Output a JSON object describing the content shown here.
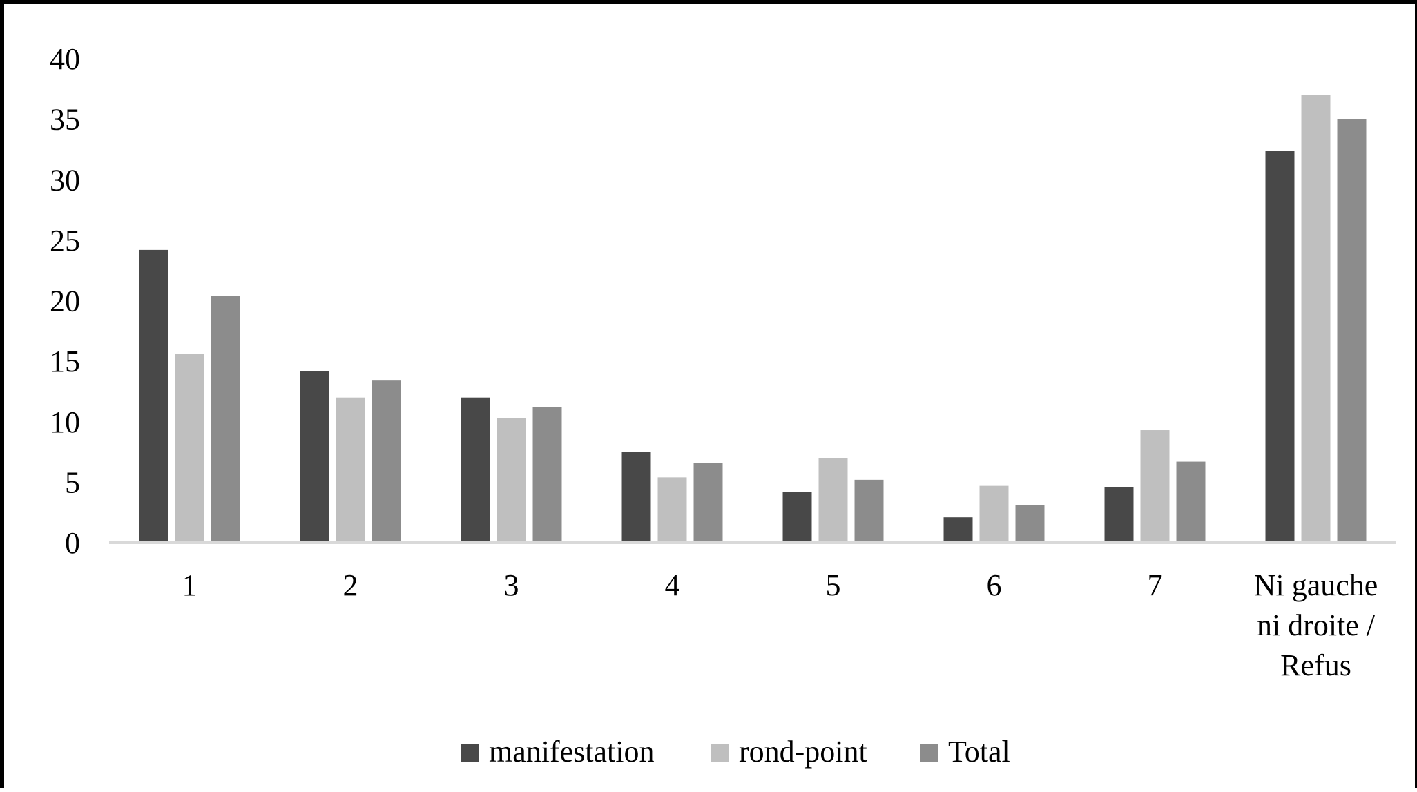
{
  "chart_data": {
    "type": "bar",
    "categories": [
      "1",
      "2",
      "3",
      "4",
      "5",
      "6",
      "7",
      "Ni gauche ni droite / Refus"
    ],
    "category_label_lines": [
      [
        "1"
      ],
      [
        "2"
      ],
      [
        "3"
      ],
      [
        "4"
      ],
      [
        "5"
      ],
      [
        "6"
      ],
      [
        "7"
      ],
      [
        "Ni gauche",
        "ni droite /",
        "Refus"
      ]
    ],
    "series": [
      {
        "name": "manifestation",
        "color": "#484848",
        "values": [
          24.2,
          14.2,
          12.0,
          7.5,
          4.2,
          2.1,
          4.6,
          32.4
        ]
      },
      {
        "name": "rond-point",
        "color": "#bfbfbf",
        "values": [
          15.6,
          12.0,
          10.3,
          5.4,
          7.0,
          4.7,
          9.3,
          37.0
        ]
      },
      {
        "name": "Total",
        "color": "#8c8c8c",
        "values": [
          20.4,
          13.4,
          11.2,
          6.6,
          5.2,
          3.1,
          6.7,
          35.0
        ]
      }
    ],
    "y_ticks": [
      "0",
      "5",
      "10",
      "15",
      "20",
      "25",
      "30",
      "35",
      "40"
    ],
    "ylim": [
      0,
      40
    ],
    "grid": false,
    "legend_position": "bottom",
    "title": "",
    "xlabel": "",
    "ylabel": ""
  }
}
